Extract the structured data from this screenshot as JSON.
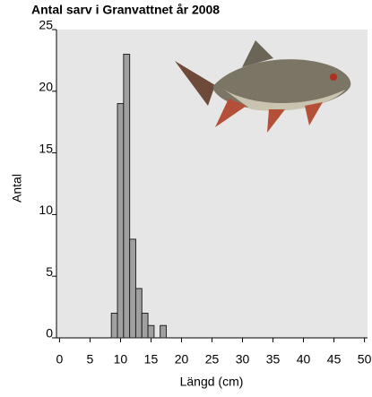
{
  "chart_data": {
    "type": "histogram",
    "title": "Antal sarv i Granvattnet år 2008",
    "x_label": "Längd (cm)",
    "y_label": "Antal",
    "bins": [
      8.5,
      9.5,
      10.5,
      11.5,
      12.5,
      13.5,
      14.5,
      15.5,
      16.5,
      17.5
    ],
    "values": [
      2,
      19,
      23,
      8,
      4,
      2,
      1,
      0,
      1
    ],
    "color": "#a0a0a0",
    "xlim": [
      -0.5,
      50.5
    ],
    "xticks": [
      0,
      5,
      10,
      15,
      20,
      25,
      30,
      35,
      40,
      45,
      50
    ],
    "ylim": [
      0,
      25
    ],
    "yticks": [
      0,
      5,
      10,
      15,
      20,
      25
    ]
  }
}
